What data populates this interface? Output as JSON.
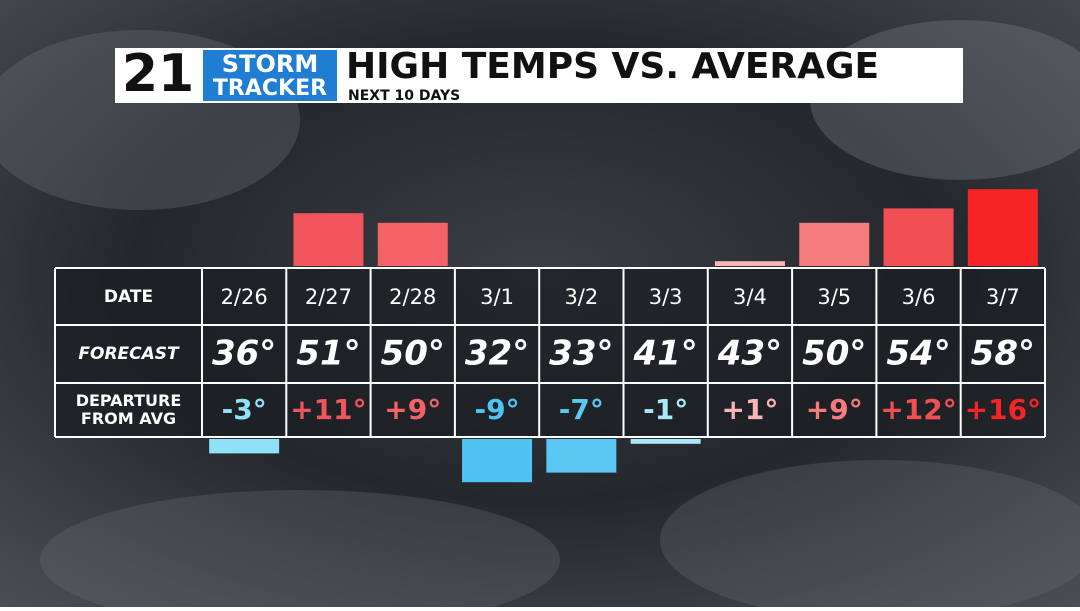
{
  "chart_data": {
    "type": "bar",
    "logo_number": "21",
    "logo_line1": "STORM",
    "logo_line2": "TRACKER",
    "title": "HIGH TEMPS VS. AVERAGE",
    "subtitle": "NEXT 10 DAYS",
    "row_labels": [
      "DATE",
      "FORECAST",
      "DEPARTURE FROM AVG"
    ],
    "categories": [
      "2/26",
      "2/27",
      "2/28",
      "3/1",
      "3/2",
      "3/3",
      "3/4",
      "3/5",
      "3/6",
      "3/7"
    ],
    "forecast": [
      "36°",
      "51°",
      "50°",
      "32°",
      "33°",
      "41°",
      "43°",
      "50°",
      "54°",
      "58°"
    ],
    "values": [
      -3,
      11,
      9,
      -9,
      -7,
      -1,
      1,
      9,
      12,
      16
    ],
    "value_labels": [
      "-3°",
      "+11°",
      "+9°",
      "-9°",
      "-7°",
      "-1°",
      "+1°",
      "+9°",
      "+12°",
      "+16°"
    ],
    "colors": [
      "#8fe1f8",
      "#f0555b",
      "#f36266",
      "#4fc3f1",
      "#5ac8f3",
      "#a9e8f8",
      "#f8b5b7",
      "#f57b7d",
      "#f14f53",
      "#f62424"
    ]
  }
}
